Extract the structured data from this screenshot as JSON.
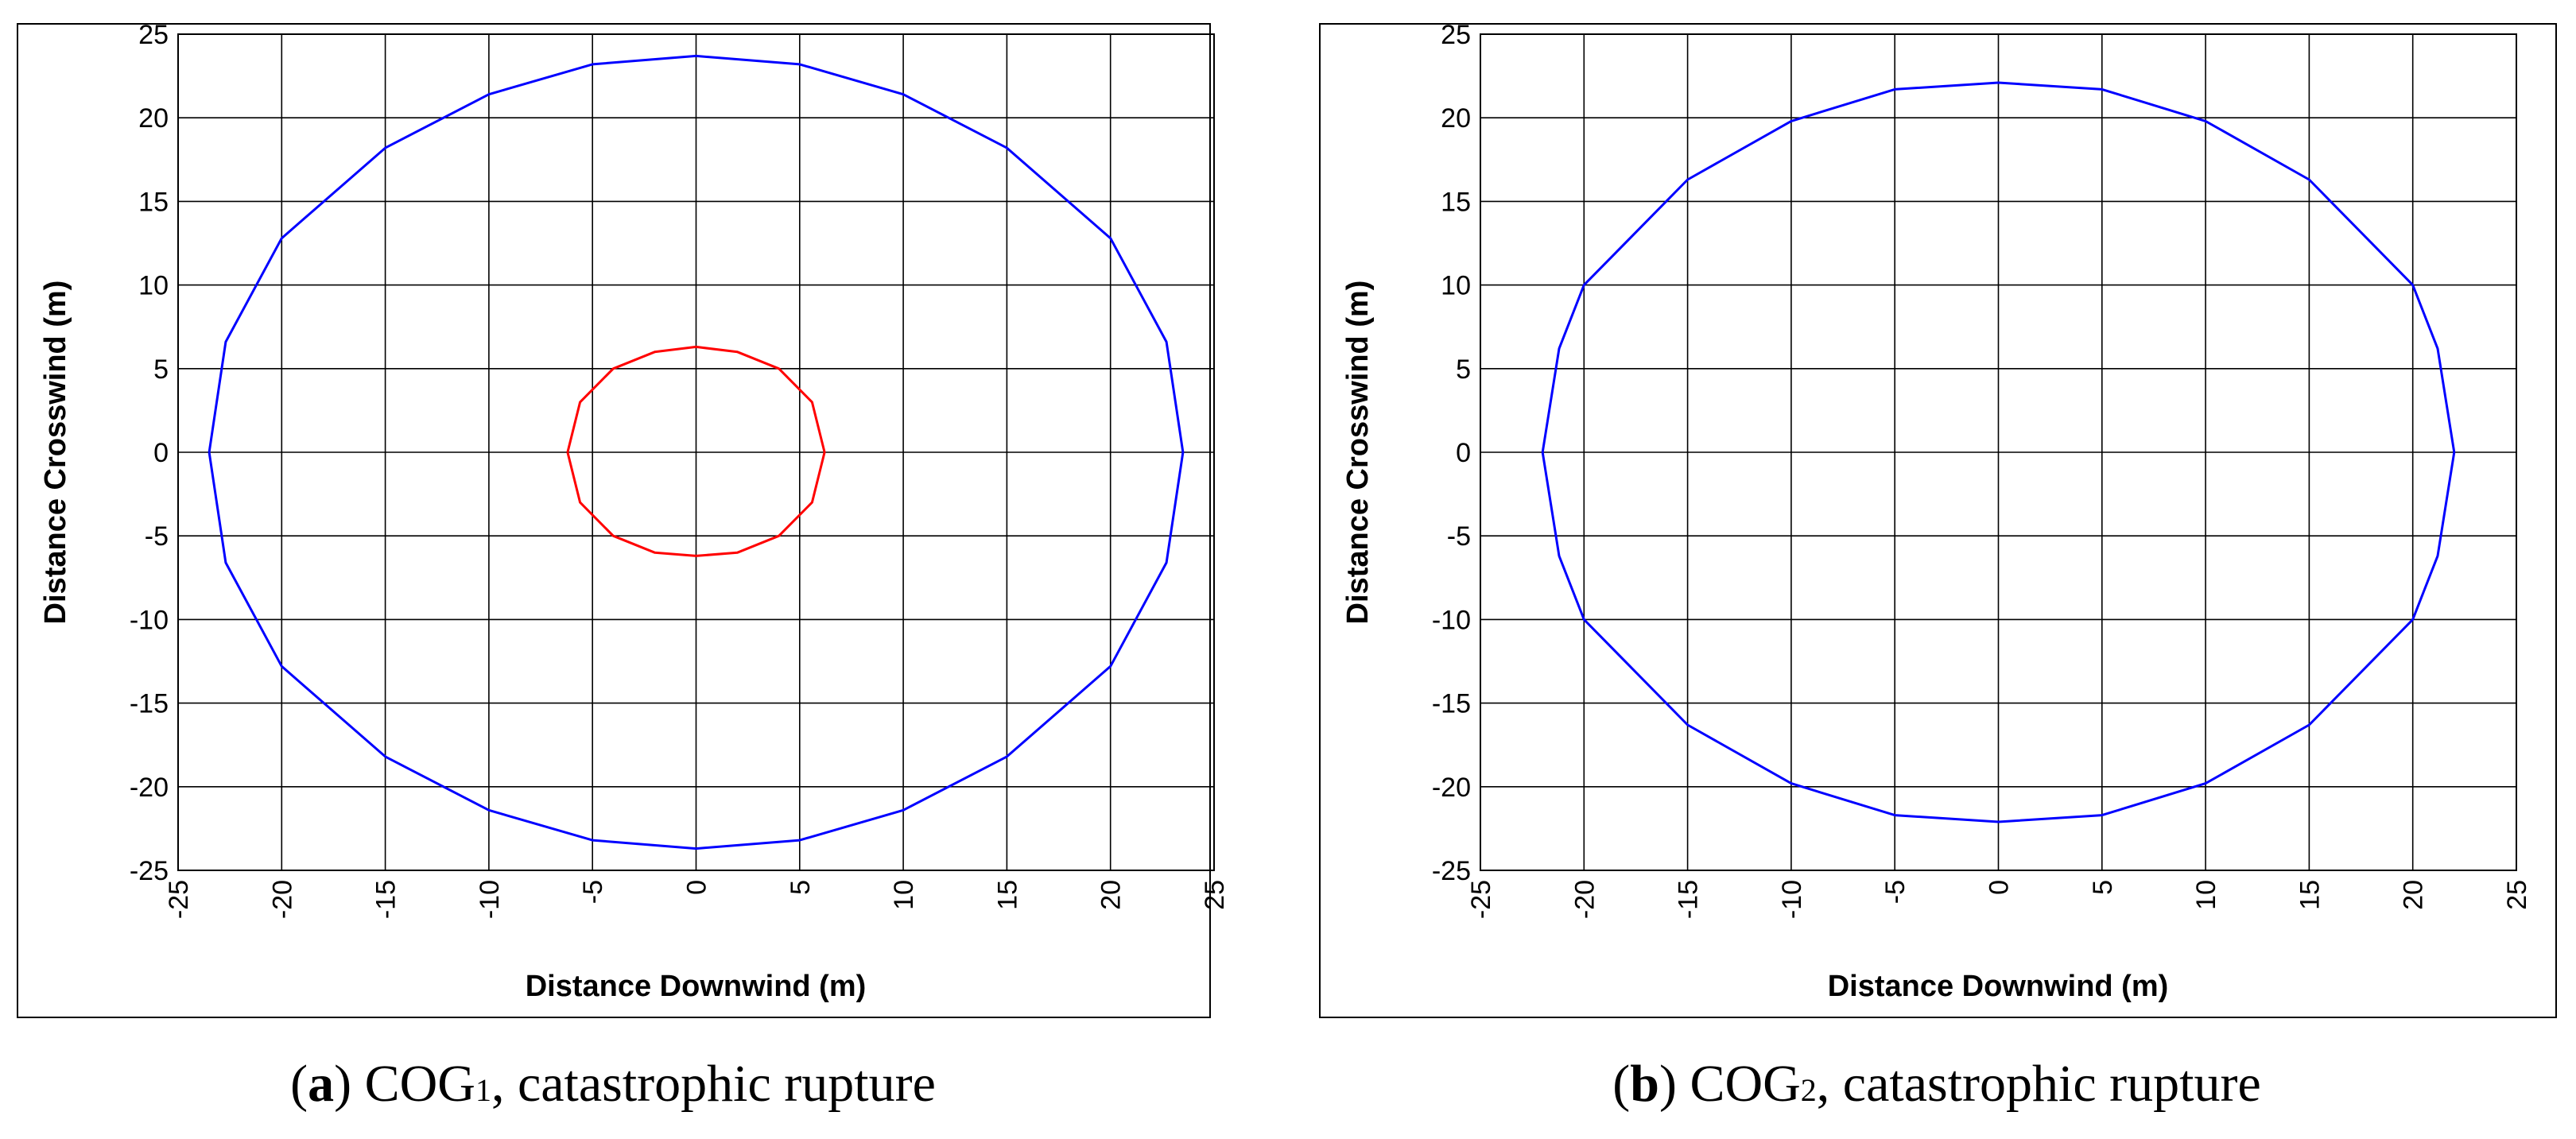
{
  "chart_data": [
    {
      "type": "line",
      "panel_label": "a",
      "caption_main": "COG",
      "caption_sub": "1",
      "caption_rest": ", catastrophic rupture",
      "xlabel": "Distance Downwind (m)",
      "ylabel": "Distance Crosswind (m)",
      "xlim": [
        -25,
        25
      ],
      "ylim": [
        -25,
        25
      ],
      "xticks": [
        "-25",
        "-20",
        "-15",
        "-10",
        "-5",
        "0",
        "5",
        "10",
        "15",
        "20",
        "25"
      ],
      "yticks": [
        "25",
        "20",
        "15",
        "10",
        "5",
        "0",
        "-5",
        "-10",
        "-15",
        "-20",
        "-25"
      ],
      "grid": true,
      "series": [
        {
          "color": "#0000ff",
          "x": [
            -23.5,
            -22.7,
            -20.0,
            -15.0,
            -10.0,
            -5.0,
            0.0,
            5.0,
            10.0,
            15.0,
            20.0,
            22.7,
            23.5,
            22.7,
            20.0,
            15.0,
            10.0,
            5.0,
            0.0,
            -5.0,
            -10.0,
            -15.0,
            -20.0,
            -22.7,
            -23.5
          ],
          "y": [
            0.0,
            6.6,
            12.8,
            18.2,
            21.4,
            23.2,
            23.7,
            23.2,
            21.4,
            18.2,
            12.8,
            6.6,
            0.0,
            -6.6,
            -12.8,
            -18.2,
            -21.4,
            -23.2,
            -23.7,
            -23.2,
            -21.4,
            -18.2,
            -12.8,
            -6.6,
            0.0
          ]
        },
        {
          "color": "#ff0000",
          "x": [
            -6.2,
            -5.6,
            -4.0,
            -2.0,
            0.0,
            2.0,
            4.0,
            5.6,
            6.2,
            5.6,
            4.0,
            2.0,
            0.0,
            -2.0,
            -4.0,
            -5.6,
            -6.2
          ],
          "y": [
            0.0,
            3.0,
            5.0,
            6.0,
            6.3,
            6.0,
            5.0,
            3.0,
            0.0,
            -3.0,
            -5.0,
            -6.0,
            -6.2,
            -6.0,
            -5.0,
            -3.0,
            0.0
          ]
        }
      ]
    },
    {
      "type": "line",
      "panel_label": "b",
      "caption_main": "COG",
      "caption_sub": "2",
      "caption_rest": ", catastrophic rupture",
      "xlabel": "Distance Downwind (m)",
      "ylabel": "Distance Crosswind (m)",
      "xlim": [
        -25,
        25
      ],
      "ylim": [
        -25,
        25
      ],
      "xticks": [
        "-25",
        "-20",
        "-15",
        "-10",
        "-5",
        "0",
        "5",
        "10",
        "15",
        "20",
        "25"
      ],
      "yticks": [
        "25",
        "20",
        "15",
        "10",
        "5",
        "0",
        "-5",
        "-10",
        "-15",
        "-20",
        "-25"
      ],
      "grid": true,
      "series": [
        {
          "color": "#0000ff",
          "x": [
            -22.0,
            -21.2,
            -20.0,
            -15.0,
            -10.0,
            -5.0,
            0.0,
            5.0,
            10.0,
            15.0,
            20.0,
            21.2,
            22.0,
            21.2,
            20.0,
            15.0,
            10.0,
            5.0,
            0.0,
            -5.0,
            -10.0,
            -15.0,
            -20.0,
            -21.2,
            -22.0
          ],
          "y": [
            0.0,
            6.2,
            10.0,
            16.3,
            19.8,
            21.7,
            22.1,
            21.7,
            19.8,
            16.3,
            10.0,
            6.2,
            0.0,
            -6.2,
            -10.0,
            -16.3,
            -19.8,
            -21.7,
            -22.1,
            -21.7,
            -19.8,
            -16.3,
            -10.0,
            -6.2,
            0.0
          ]
        }
      ]
    }
  ]
}
